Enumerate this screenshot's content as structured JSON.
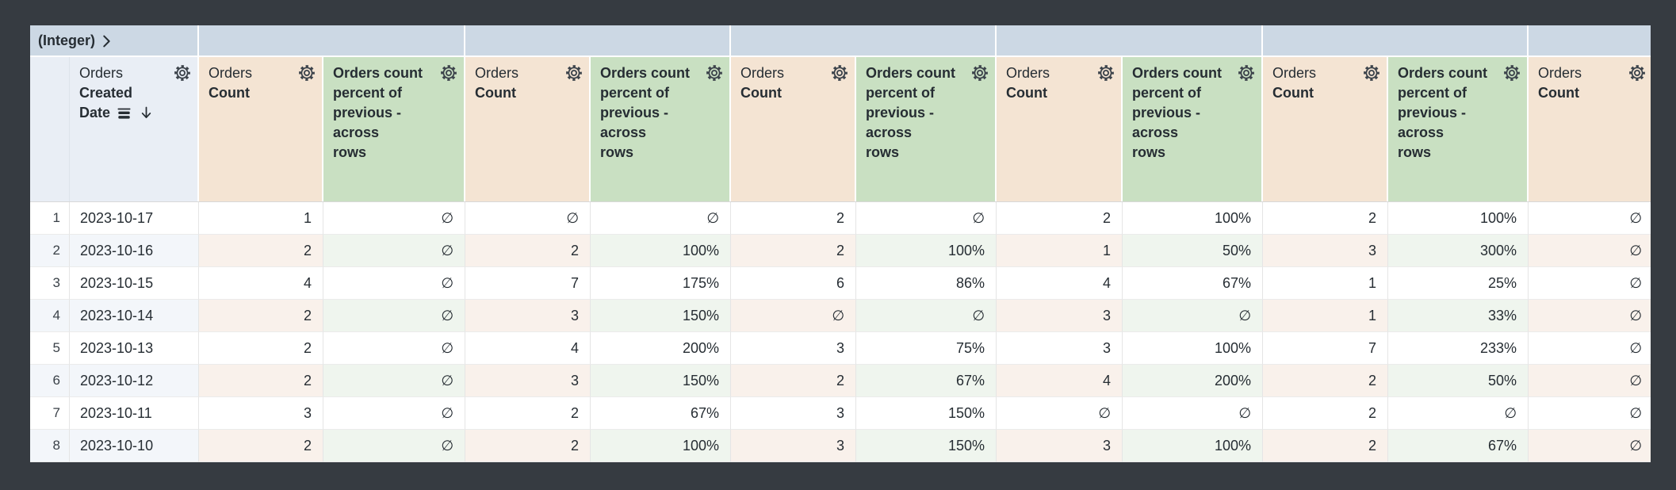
{
  "pivot": {
    "field_label": "(Integer)",
    "expand_icon": "chevron-right-icon",
    "value_cell_count": 6
  },
  "labels": {
    "view": "Orders",
    "count_field": "Count",
    "date_field_line1": "Created",
    "date_field_line2": "Date",
    "date_sort_icon": "sort-desc-icon",
    "date_subtotal_icon": "subtotal-rows-icon",
    "gear_icon": "gear-icon",
    "calc_label": "Orders count percent of previous - across rows",
    "pct_lines": [
      "Orders count",
      "percent of",
      "previous -",
      "across",
      "rows"
    ]
  },
  "columns": [
    {
      "kind": "rownum"
    },
    {
      "kind": "date"
    },
    {
      "kind": "count"
    },
    {
      "kind": "pct"
    },
    {
      "kind": "count"
    },
    {
      "kind": "pct"
    },
    {
      "kind": "count"
    },
    {
      "kind": "pct"
    },
    {
      "kind": "count"
    },
    {
      "kind": "pct"
    },
    {
      "kind": "count"
    },
    {
      "kind": "pct"
    },
    {
      "kind": "count"
    }
  ],
  "null_symbol": "∅",
  "rows": [
    {
      "num": "1",
      "date": "2023-10-17",
      "values": [
        "1",
        "∅",
        "∅",
        "∅",
        "2",
        "∅",
        "2",
        "100%",
        "2",
        "100%",
        "∅"
      ]
    },
    {
      "num": "2",
      "date": "2023-10-16",
      "values": [
        "2",
        "∅",
        "2",
        "100%",
        "2",
        "100%",
        "1",
        "50%",
        "3",
        "300%",
        "∅"
      ]
    },
    {
      "num": "3",
      "date": "2023-10-15",
      "values": [
        "4",
        "∅",
        "7",
        "175%",
        "6",
        "86%",
        "4",
        "67%",
        "1",
        "25%",
        "∅"
      ]
    },
    {
      "num": "4",
      "date": "2023-10-14",
      "values": [
        "2",
        "∅",
        "3",
        "150%",
        "∅",
        "∅",
        "3",
        "∅",
        "1",
        "33%",
        "∅"
      ]
    },
    {
      "num": "5",
      "date": "2023-10-13",
      "values": [
        "2",
        "∅",
        "4",
        "200%",
        "3",
        "75%",
        "3",
        "100%",
        "7",
        "233%",
        "∅"
      ]
    },
    {
      "num": "6",
      "date": "2023-10-12",
      "values": [
        "2",
        "∅",
        "3",
        "150%",
        "2",
        "67%",
        "4",
        "200%",
        "2",
        "50%",
        "∅"
      ]
    },
    {
      "num": "7",
      "date": "2023-10-11",
      "values": [
        "3",
        "∅",
        "2",
        "67%",
        "3",
        "150%",
        "∅",
        "∅",
        "2",
        "∅",
        "∅"
      ]
    },
    {
      "num": "8",
      "date": "2023-10-10",
      "values": [
        "2",
        "∅",
        "2",
        "100%",
        "3",
        "150%",
        "3",
        "100%",
        "2",
        "67%",
        "∅"
      ]
    }
  ],
  "colors": {
    "frame_bg": "#363b41",
    "pivot_header_bg": "#ccd8e4",
    "dimension_header_bg": "#e9eef5",
    "measure_header_bg": "#f4e4d3",
    "calc_header_bg": "#c9e0c2",
    "row_tint_dimension": "#f3f6fa",
    "row_tint_measure": "#f9f1eb",
    "row_tint_calc": "#eff5ee",
    "text": "#262d33"
  }
}
